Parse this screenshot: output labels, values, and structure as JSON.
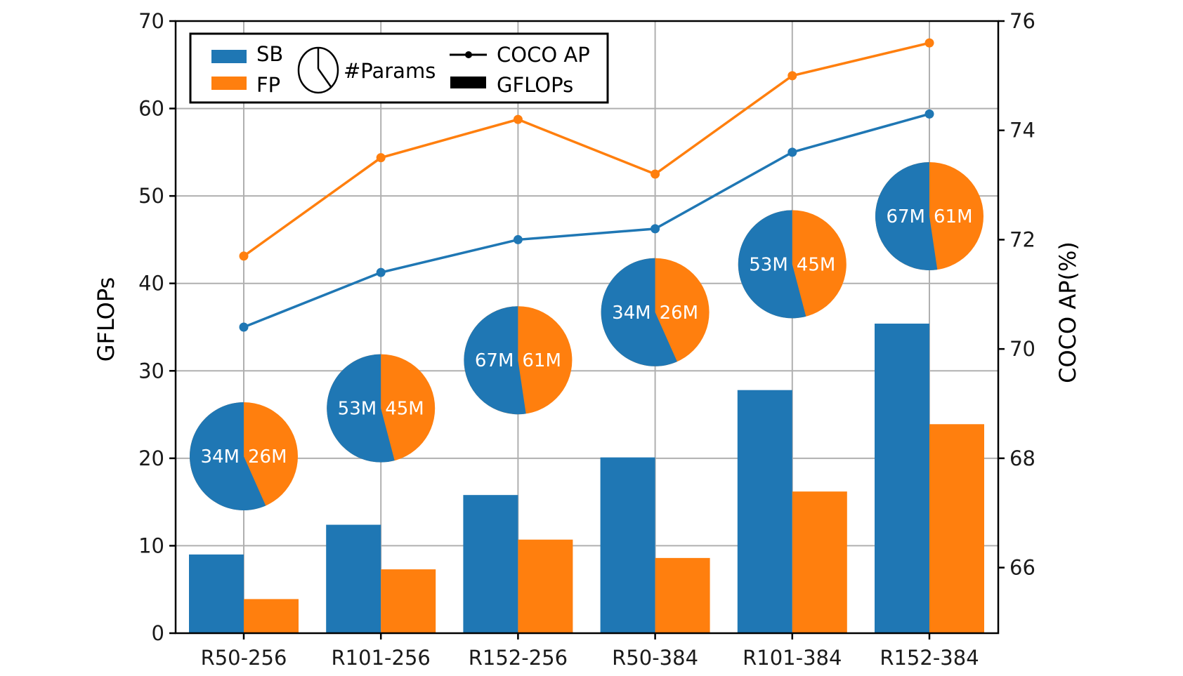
{
  "chart_data": {
    "type": "bar",
    "title": "",
    "xlabel": "",
    "ylabel": "GFLOPs",
    "ylabel_right": "COCO AP(%)",
    "ylim": [
      0,
      70
    ],
    "ylim_right": [
      64.8,
      76
    ],
    "yticks": [
      0,
      10,
      20,
      30,
      40,
      50,
      60,
      70
    ],
    "yticks_right": [
      66,
      68,
      70,
      72,
      74,
      76
    ],
    "grid": true,
    "categories": [
      "R50-256",
      "R101-256",
      "R152-256",
      "R50-384",
      "R101-384",
      "R152-384"
    ],
    "colors": {
      "SB": "#1f77b4",
      "FP": "#ff7f0e"
    },
    "series": [
      {
        "name": "SB",
        "kind": "bar",
        "axis": "GFLOPs",
        "values": [
          9.0,
          12.4,
          15.8,
          20.1,
          27.8,
          35.4
        ]
      },
      {
        "name": "FP",
        "kind": "bar",
        "axis": "GFLOPs",
        "values": [
          3.9,
          7.3,
          10.7,
          8.6,
          16.2,
          23.9
        ]
      },
      {
        "name": "SB",
        "kind": "line",
        "axis": "COCO AP",
        "values": [
          70.4,
          71.4,
          72.0,
          72.2,
          73.6,
          74.3
        ]
      },
      {
        "name": "FP",
        "kind": "line",
        "axis": "COCO AP",
        "values": [
          71.7,
          73.5,
          74.2,
          73.2,
          75.0,
          75.6
        ]
      }
    ],
    "pies": [
      {
        "category": "R50-256",
        "SB": 34,
        "FP": 26,
        "SB_label": "34M",
        "FP_label": "26M"
      },
      {
        "category": "R101-256",
        "SB": 53,
        "FP": 45,
        "SB_label": "53M",
        "FP_label": "45M"
      },
      {
        "category": "R152-256",
        "SB": 67,
        "FP": 61,
        "SB_label": "67M",
        "FP_label": "61M"
      },
      {
        "category": "R50-384",
        "SB": 34,
        "FP": 26,
        "SB_label": "34M",
        "FP_label": "26M"
      },
      {
        "category": "R101-384",
        "SB": 53,
        "FP": 45,
        "SB_label": "53M",
        "FP_label": "45M"
      },
      {
        "category": "R152-384",
        "SB": 67,
        "FP": 61,
        "SB_label": "67M",
        "FP_label": "61M"
      }
    ],
    "legend": {
      "placement": "top-left",
      "entries": [
        {
          "label": "SB",
          "symbol": "patch",
          "color": "#1f77b4"
        },
        {
          "label": "FP",
          "symbol": "patch",
          "color": "#ff7f0e"
        },
        {
          "label": "#Params",
          "symbol": "pie-icon"
        },
        {
          "label": "COCO AP",
          "symbol": "line-marker"
        },
        {
          "label": "GFLOPs",
          "symbol": "black-patch"
        }
      ]
    }
  }
}
